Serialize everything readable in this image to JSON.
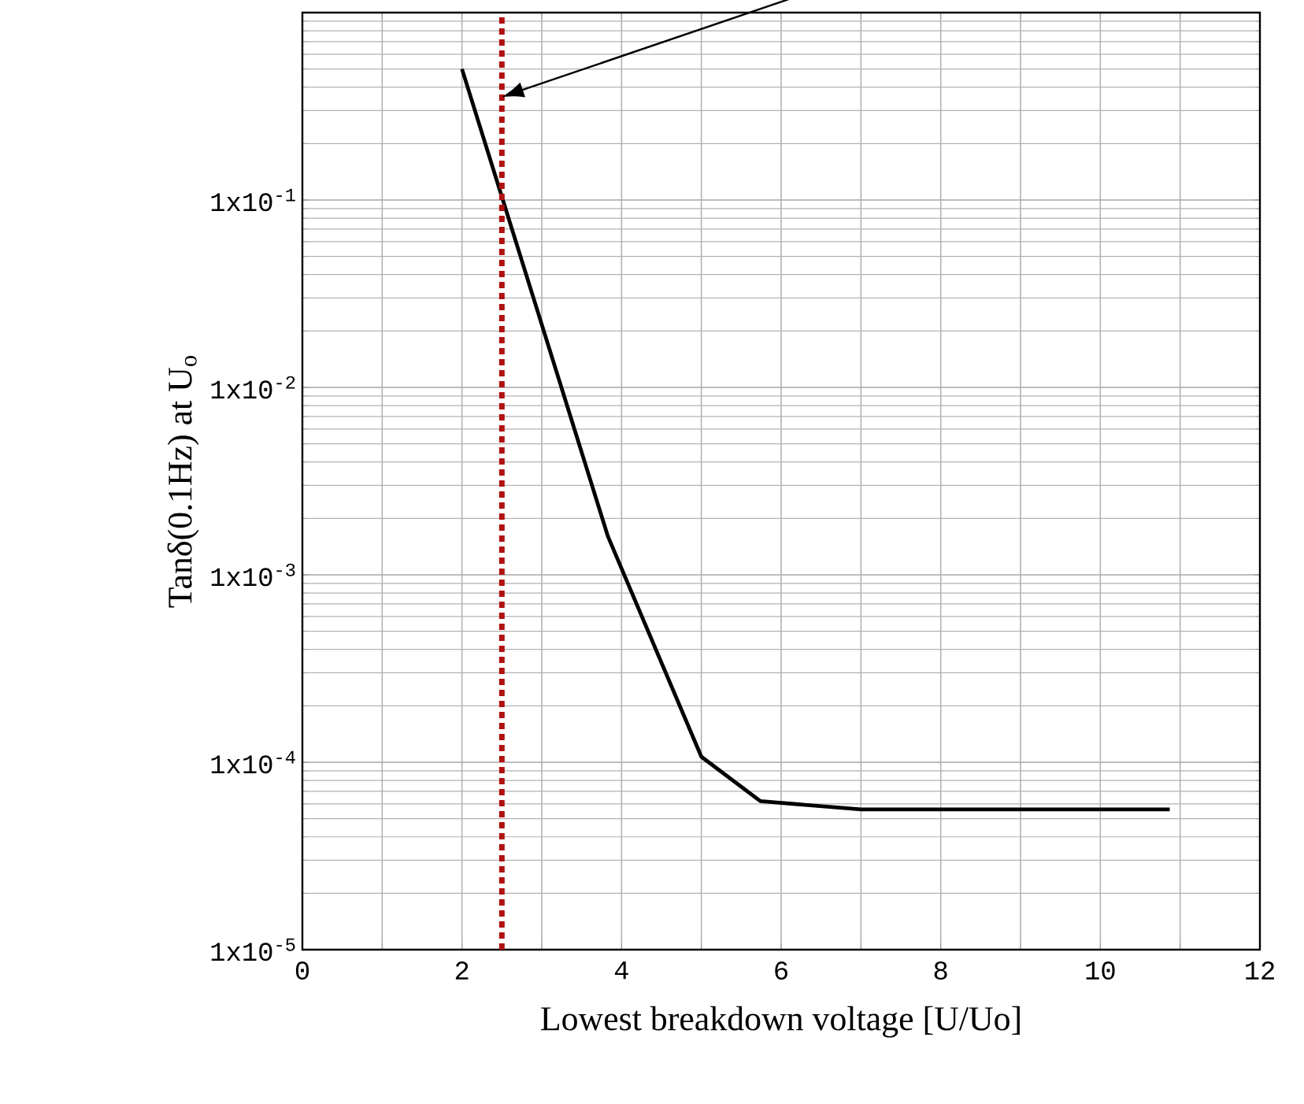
{
  "chart_data": {
    "type": "line",
    "xlabel": "Lowest breakdown voltage [U/Uo]",
    "ylabel": "Tanδ(0.1Hz) at U$_{o}$",
    "x": [
      2,
      3.83,
      5.0,
      5.74,
      7.0,
      10.87
    ],
    "series": [
      {
        "color": "#000000",
        "values": [
          0.5,
          0.0016,
          0.000107,
          6.2e-05,
          5.6e-05,
          5.6e-05
        ]
      }
    ],
    "xlim": [
      0,
      12
    ],
    "xticks": [
      0,
      {
        "value": 1,
        "label": null
      },
      2,
      {
        "value": 3,
        "label": null
      },
      4,
      {
        "value": 5,
        "label": null
      },
      6,
      {
        "value": 7,
        "label": null
      },
      8,
      {
        "value": 9,
        "label": null
      },
      10,
      {
        "value": 11,
        "label": null
      },
      12
    ],
    "ylim": [
      1e-05,
      1
    ],
    "yticks": [
      {
        "value": 1e-05,
        "label": "1x10$^{-5}$"
      },
      {
        "value": 0.0001,
        "label": "1x10$^{-4}$"
      },
      {
        "value": 0.001,
        "label": "1x10$^{-3}$"
      },
      {
        "value": 0.01,
        "label": "1x10$^{-2}$"
      },
      {
        "value": 0.1,
        "label": "1x10$^{-1}$"
      },
      {
        "value": 1,
        "label": null
      }
    ],
    "log": "y",
    "grid": true,
    "ref_lines": [
      {
        "axis": "x",
        "value": 2.5,
        "color": "#b01010",
        "line_style": "dotted"
      }
    ]
  }
}
